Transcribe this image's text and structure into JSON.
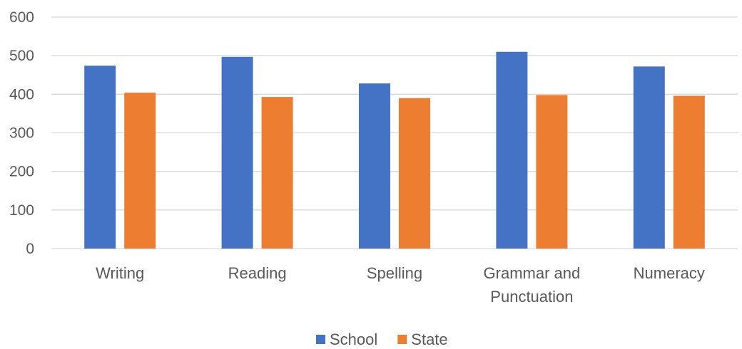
{
  "chart_data": {
    "type": "bar",
    "categories": [
      [
        "Writing"
      ],
      [
        "Reading"
      ],
      [
        "Spelling"
      ],
      [
        "Grammar and",
        "Punctuation"
      ],
      [
        "Numeracy"
      ]
    ],
    "series": [
      {
        "name": "School",
        "color": "#4472C4",
        "values": [
          474,
          497,
          428,
          510,
          472
        ]
      },
      {
        "name": "State",
        "color": "#ED7D31",
        "values": [
          404,
          393,
          390,
          398,
          396
        ]
      }
    ],
    "ylim": [
      0,
      600
    ],
    "yticks": [
      0,
      100,
      200,
      300,
      400,
      500,
      600
    ],
    "grid": true,
    "legend_position": "bottom"
  }
}
